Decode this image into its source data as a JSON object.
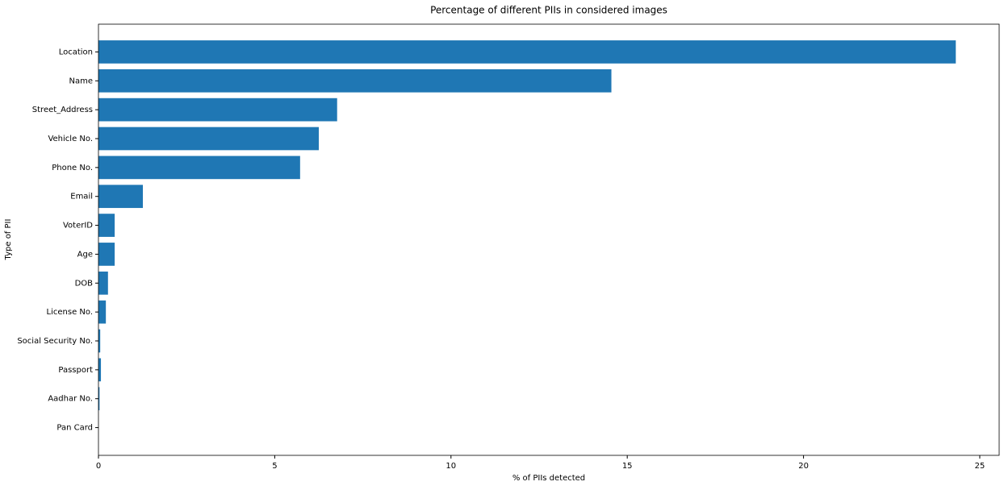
{
  "chart_data": {
    "type": "barh",
    "title": "Percentage of different PIIs in considered images",
    "x_label": "% of PIIs detected",
    "y_label": "Type of PII",
    "categories": [
      "Location",
      "Name",
      "Street_Address",
      "Vehicle No.",
      "Phone No.",
      "Email",
      "VoterID",
      "Age",
      "DOB",
      "License No.",
      "Social Security No.",
      "Passport",
      "Aadhar No.",
      "Pan Card"
    ],
    "values": [
      24.32,
      14.55,
      6.77,
      6.25,
      5.72,
      1.26,
      0.46,
      0.46,
      0.27,
      0.21,
      0.05,
      0.07,
      0.03,
      0
    ],
    "color": "#1f77b4",
    "xlim": [
      0,
      25.55
    ],
    "xticks": [
      0,
      5,
      10,
      15,
      20,
      25
    ],
    "grid": false
  }
}
